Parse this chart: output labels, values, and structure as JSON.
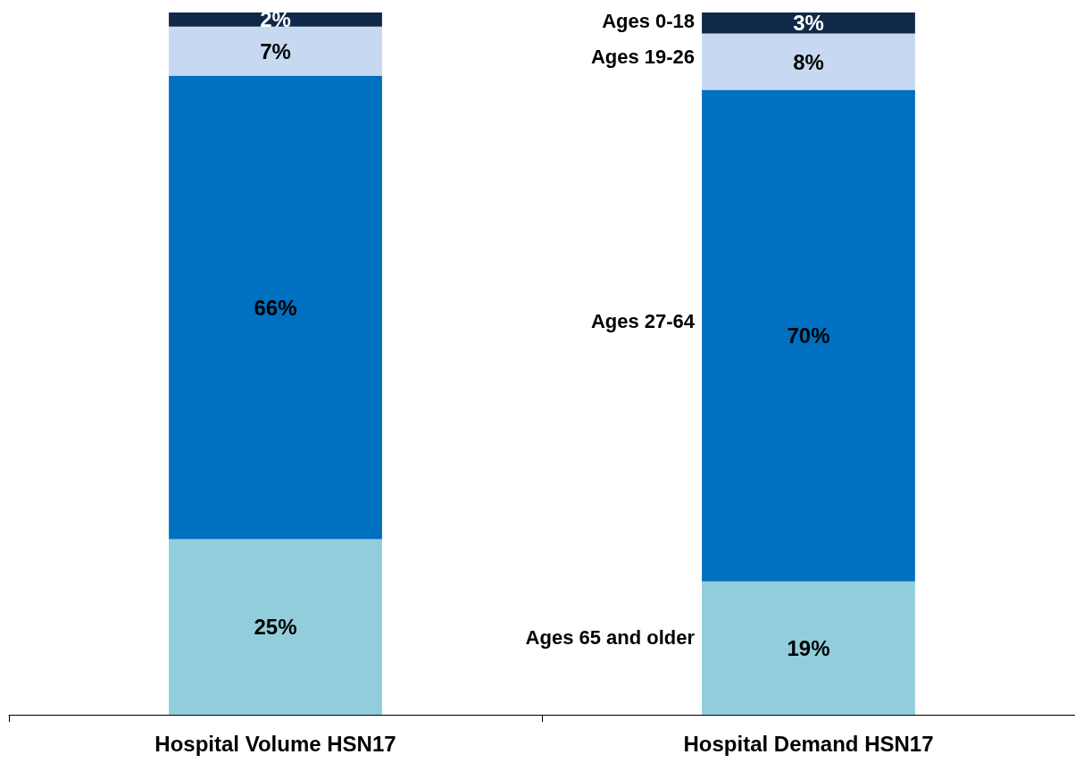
{
  "chart_data": {
    "type": "bar",
    "stacked": true,
    "categories": [
      "Hospital Volume HSN17",
      "Hospital Demand HSN17"
    ],
    "ylim": [
      0,
      100
    ],
    "legend": false,
    "series": [
      {
        "name": "Ages 65 and older",
        "color": "#92cddc",
        "values": [
          25,
          19
        ],
        "value_labels": [
          "25%",
          "19%"
        ]
      },
      {
        "name": "Ages 27-64",
        "color": "#0070c0",
        "values": [
          66,
          70
        ],
        "value_labels": [
          "66%",
          "70%"
        ]
      },
      {
        "name": "Ages 19-26",
        "color": "#c6d9f1",
        "values": [
          7,
          8
        ],
        "value_labels": [
          "7%",
          "8%"
        ]
      },
      {
        "name": "Ages 0-18",
        "color": "#10284a",
        "values": [
          2,
          3
        ],
        "value_labels": [
          "2%",
          "3%"
        ]
      }
    ]
  }
}
